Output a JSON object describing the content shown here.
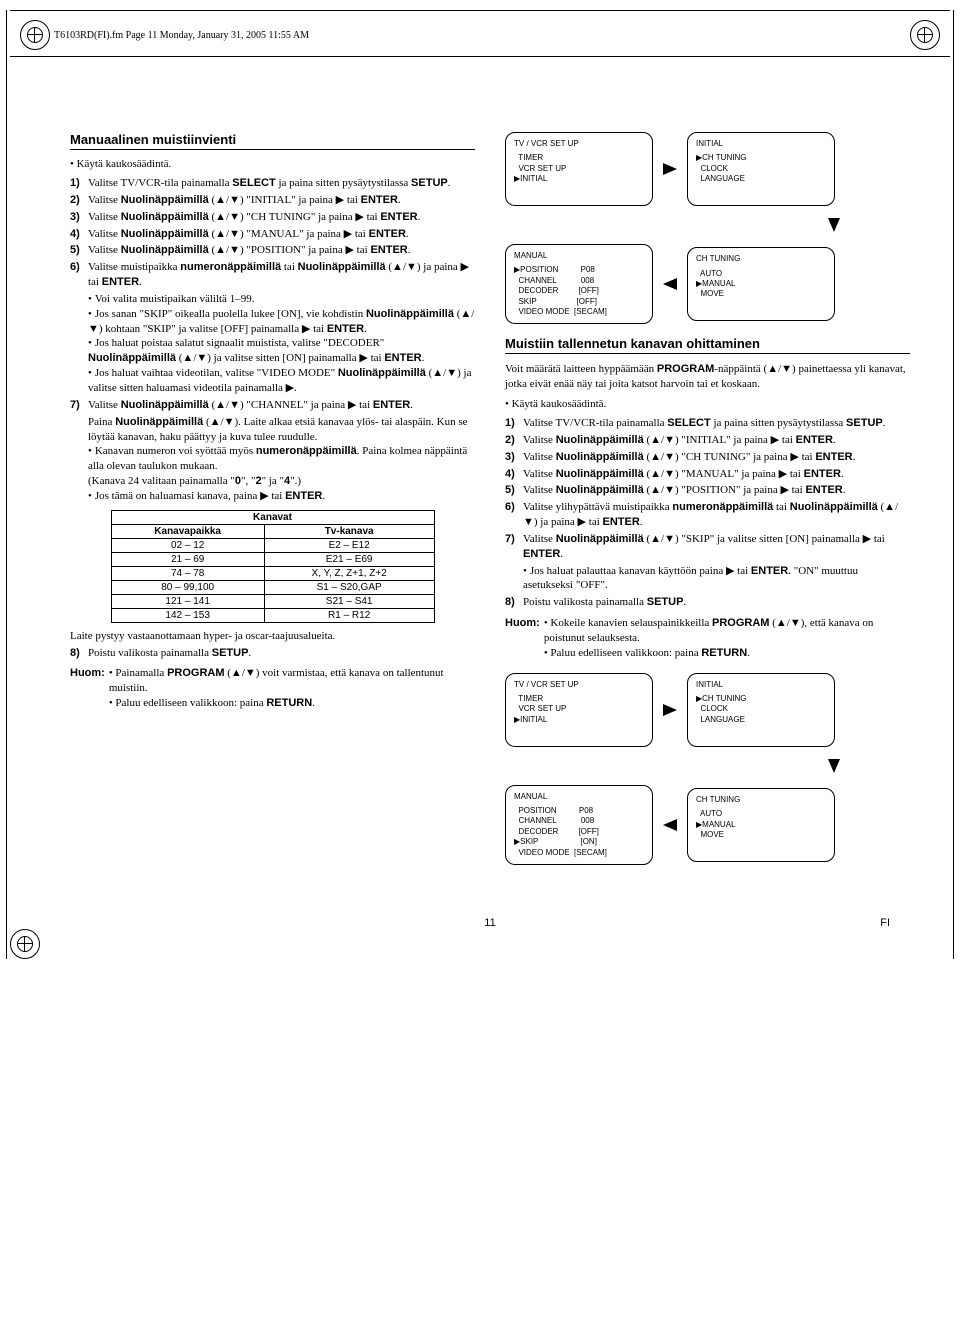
{
  "header": {
    "text": "T6103RD(FI).fm  Page 11  Monday, January 31, 2005  11:55 AM"
  },
  "left": {
    "heading": "Manuaalinen muistiinvienti",
    "intro": "Käytä kaukosäädintä.",
    "steps": {
      "s1": "Valitse TV/VCR-tila painamalla SELECT ja paina sitten pysäytystilassa SETUP.",
      "s2": "Valitse Nuolinäppäimillä (▲/▼) \"INITIAL\" ja paina ▶ tai ENTER.",
      "s3": "Valitse Nuolinäppäimillä (▲/▼) \"CH TUNING\" ja paina ▶ tai ENTER.",
      "s4": "Valitse Nuolinäppäimillä (▲/▼) \"MANUAL\" ja paina ▶ tai ENTER.",
      "s5": "Valitse Nuolinäppäimillä (▲/▼) \"POSITION\" ja paina ▶ tai ENTER.",
      "s6": "Valitse muistipaikka numeronäppäimillä tai Nuolinäppäimillä (▲/▼) ja paina ▶ tai ENTER.",
      "s6a": "Voi valita muistipaikan väliltä 1–99.",
      "s6b": "Jos sanan \"SKIP\" oikealla puolella lukee [ON], vie kohdistin Nuolinäppäimillä (▲/▼) kohtaan \"SKIP\" ja valitse [OFF] painamalla ▶ tai ENTER.",
      "s6c": "Jos haluat poistaa salatut signaalit muistista, valitse \"DECODER\" Nuolinäppäimillä (▲/▼) ja valitse sitten [ON] painamalla ▶ tai ENTER.",
      "s6d": "Jos haluat vaihtaa videotilan, valitse \"VIDEO MODE\" Nuolinäppäimillä (▲/▼) ja valitse sitten haluamasi videotila painamalla ▶.",
      "s7": "Valitse Nuolinäppäimillä (▲/▼) \"CHANNEL\" ja paina ▶ tai ENTER.",
      "s7a": "Paina Nuolinäppäimillä (▲/▼). Laite alkaa etsiä kanavaa ylös- tai alaspäin. Kun se löytää kanavan, haku päättyy ja kuva tulee ruudulle.",
      "s7b": "Kanavan numeron voi syöttää myös numeronäppäimillä. Paina kolmea näppäintä alla olevan taulukon mukaan.",
      "s7c": "(Kanava 24 valitaan painamalla \"0\", \"2\" ja \"4\".)",
      "s7d": "Jos tämä on haluamasi kanava, paina ▶ tai ENTER.",
      "s8": "Poistu valikosta painamalla SETUP.",
      "after_table": "Laite pystyy vastaanottamaan hyper- ja oscar-taajuusalueita.",
      "huom1": "Painamalla PROGRAM (▲/▼) voit varmistaa, että kanava on tallentunut muistiin.",
      "huom2": "Paluu edelliseen valikkoon: paina RETURN."
    },
    "table": {
      "title": "Kanavat",
      "head": {
        "c1": "Kanavapaikka",
        "c2": "Tv-kanava"
      },
      "rows": [
        {
          "c1": "02 – 12",
          "c2": "E2 – E12"
        },
        {
          "c1": "21 – 69",
          "c2": "E21 – E69"
        },
        {
          "c1": "74 – 78",
          "c2": "X, Y, Z, Z+1, Z+2"
        },
        {
          "c1": "80 – 99,100",
          "c2": "S1 – S20,GAP"
        },
        {
          "c1": "121 – 141",
          "c2": "S21 – S41"
        },
        {
          "c1": "142 – 153",
          "c2": "R1 – R12"
        }
      ]
    }
  },
  "right": {
    "osd1": {
      "box1": {
        "title": "TV / VCR SET UP",
        "l1": "  TIMER",
        "l2": "  VCR SET UP",
        "l3": "▶INITIAL"
      },
      "box2": {
        "title": "INITIAL",
        "l1": "▶CH TUNING",
        "l2": "  CLOCK",
        "l3": "  LANGUAGE"
      },
      "box3": {
        "title": "MANUAL",
        "l1": "▶POSITION          P08",
        "l2": "  CHANNEL           008",
        "l3": "  DECODER         [OFF]",
        "l4": "  SKIP                  [OFF]",
        "l5": "  VIDEO MODE  [SECAM]"
      },
      "box4": {
        "title": "CH TUNING",
        "l1": "  AUTO",
        "l2": "▶MANUAL",
        "l3": "  MOVE"
      }
    },
    "heading": "Muistiin tallennetun kanavan ohittaminen",
    "intro": "Voit määrätä laitteen hyppäämään PROGRAM-näppäintä (▲/▼) painettaessa yli kanavat, jotka eivät enää näy tai joita katsot harvoin tai et koskaan.",
    "intro2": "Käytä kaukosäädintä.",
    "steps": {
      "s1": "Valitse TV/VCR-tila painamalla SELECT ja paina sitten pysäytystilassa SETUP.",
      "s2": "Valitse Nuolinäppäimillä (▲/▼) \"INITIAL\" ja paina ▶ tai ENTER.",
      "s3": "Valitse Nuolinäppäimillä (▲/▼) \"CH TUNING\" ja paina ▶ tai ENTER.",
      "s4": "Valitse Nuolinäppäimillä (▲/▼) \"MANUAL\" ja paina ▶ tai ENTER.",
      "s5": "Valitse Nuolinäppäimillä (▲/▼) \"POSITION\" ja paina ▶ tai ENTER.",
      "s6": "Valitse ylihypättävä muistipaikka numeronäppäimillä tai Nuolinäppäimillä (▲/▼) ja paina ▶ tai ENTER.",
      "s7": "Valitse Nuolinäppäimillä (▲/▼) \"SKIP\" ja valitse sitten [ON] painamalla ▶ tai ENTER.",
      "s7a": "Jos haluat palauttaa kanavan käyttöön paina ▶ tai ENTER. \"ON\" muuttuu asetukseksi \"OFF\".",
      "s8": "Poistu valikosta painamalla SETUP.",
      "huom1": "Kokeile kanavien selauspainikkeilla PROGRAM (▲/▼), että kanava on poistunut selauksesta.",
      "huom2": "Paluu edelliseen valikkoon: paina RETURN."
    },
    "osd2": {
      "box1": {
        "title": "TV / VCR SET UP",
        "l1": "  TIMER",
        "l2": "  VCR SET UP",
        "l3": "▶INITIAL"
      },
      "box2": {
        "title": "INITIAL",
        "l1": "▶CH TUNING",
        "l2": "  CLOCK",
        "l3": "  LANGUAGE"
      },
      "box3": {
        "title": "MANUAL",
        "l1": "  POSITION          P08",
        "l2": "  CHANNEL           008",
        "l3": "  DECODER         [OFF]",
        "l4": "▶SKIP                   [ON]",
        "l5": "  VIDEO MODE  [SECAM]"
      },
      "box4": {
        "title": "CH TUNING",
        "l1": "  AUTO",
        "l2": "▶MANUAL",
        "l3": "  MOVE"
      }
    }
  },
  "footer": {
    "page": "11",
    "lang": "FI"
  },
  "labels": {
    "huom": "Huom:"
  }
}
